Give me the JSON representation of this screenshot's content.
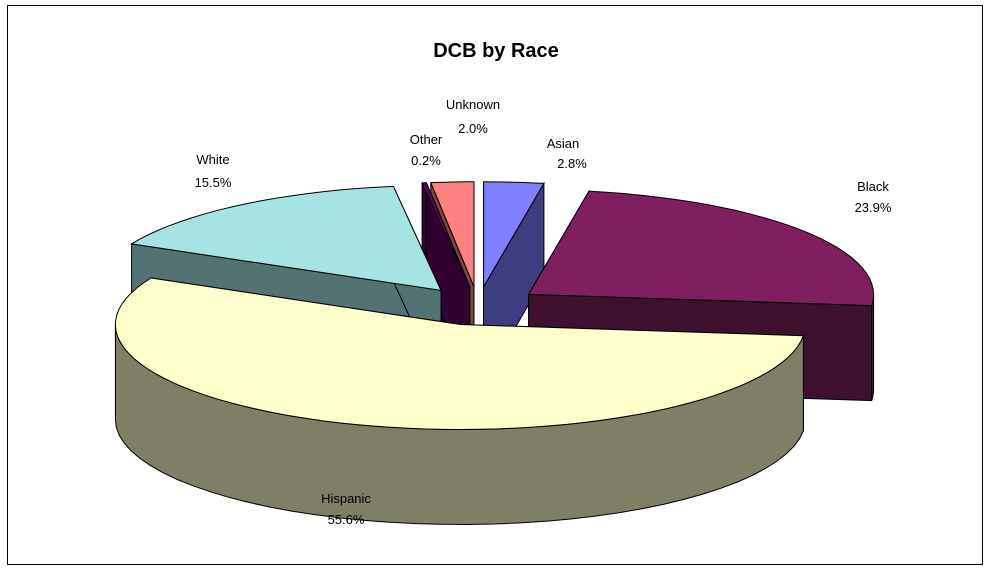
{
  "chart_data": {
    "type": "pie",
    "title": "DCB by Race",
    "slices": [
      {
        "label": "Asian",
        "value": 2.8,
        "value_label": "2.8%",
        "top_color": "#7F7FFF",
        "side_color": "#3D3D7F"
      },
      {
        "label": "Black",
        "value": 23.9,
        "value_label": "23.9%",
        "top_color": "#7F1F5F",
        "side_color": "#40102F"
      },
      {
        "label": "Hispanic",
        "value": 55.6,
        "value_label": "55.6%",
        "top_color": "#FFFFCC",
        "side_color": "#7F7F66"
      },
      {
        "label": "White",
        "value": 15.5,
        "value_label": "15.5%",
        "top_color": "#A6E3E3",
        "side_color": "#537272"
      },
      {
        "label": "Other",
        "value": 0.2,
        "value_label": "0.2%",
        "top_color": "#600060",
        "side_color": "#300030"
      },
      {
        "label": "Unknown",
        "value": 2.0,
        "value_label": "2.0%",
        "top_color": "#FF8080",
        "side_color": "#7F4040"
      }
    ],
    "legend": "none",
    "style": "3d-exploded-pie"
  }
}
